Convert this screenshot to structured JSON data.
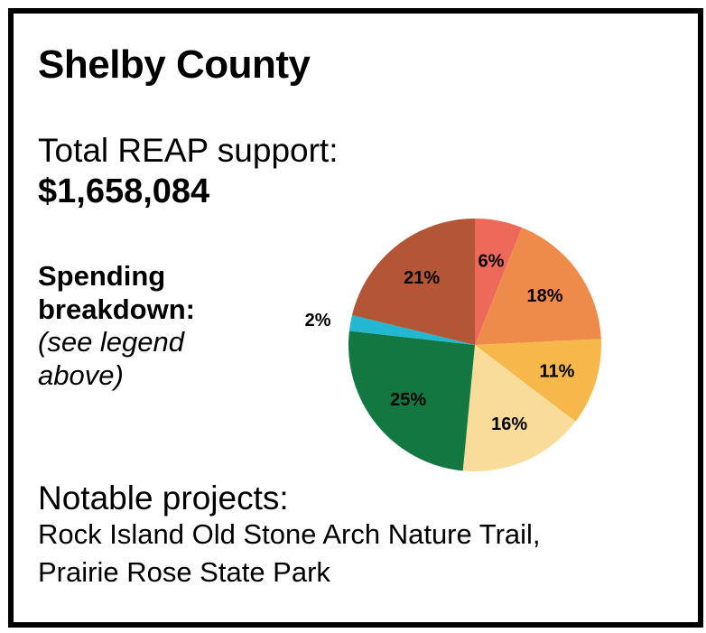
{
  "title": "Shelby County",
  "total": {
    "label": "Total REAP support:",
    "value": "$1,658,084"
  },
  "spending": {
    "heading_line1": "Spending",
    "heading_line2": "breakdown:",
    "note_line1": "(see legend",
    "note_line2": "above)"
  },
  "projects": {
    "heading": "Notable projects:",
    "line1": "Rock Island Old Stone Arch Nature Trail,",
    "line2": "Prairie Rose State Park"
  },
  "chart_data": {
    "type": "pie",
    "title": "",
    "slices": [
      {
        "label": "6%",
        "value": 6,
        "color": "#ed6a5a"
      },
      {
        "label": "18%",
        "value": 18,
        "color": "#ef8b4a"
      },
      {
        "label": "11%",
        "value": 11,
        "color": "#f6b84b"
      },
      {
        "label": "16%",
        "value": 16,
        "color": "#f9dc9a"
      },
      {
        "label": "25%",
        "value": 25,
        "color": "#127741"
      },
      {
        "label": "2%",
        "value": 2,
        "color": "#22b8d2"
      },
      {
        "label": "21%",
        "value": 21,
        "color": "#b25635"
      }
    ]
  }
}
